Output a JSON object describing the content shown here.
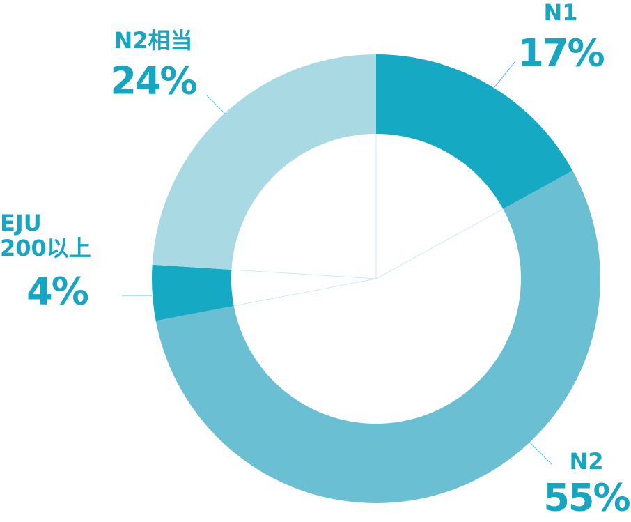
{
  "chart_data": {
    "type": "donut",
    "categories": [
      "N1",
      "N2",
      "EJU 200以上",
      "N2相当"
    ],
    "values": [
      17,
      55,
      4,
      24
    ],
    "value_labels": [
      "17%",
      "55%",
      "4%",
      "24%"
    ],
    "colors": [
      "#16a9c4",
      "#6bbfd3",
      "#16a9c4",
      "#a9dae4"
    ]
  }
}
